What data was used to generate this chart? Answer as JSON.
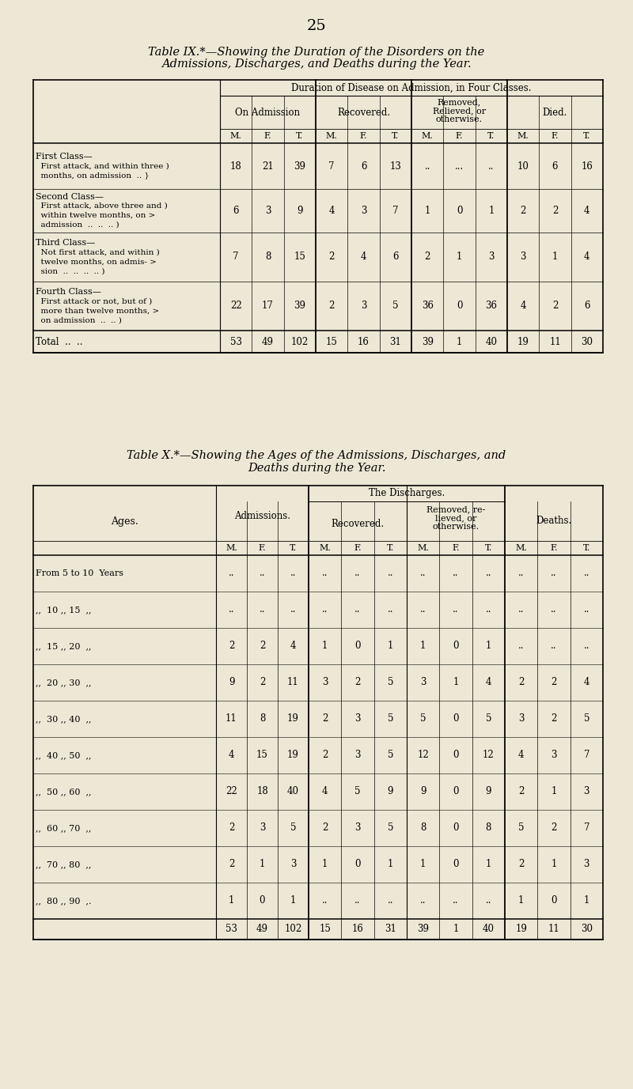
{
  "bg_color": "#ede8d5",
  "page_number": "25",
  "table9": {
    "title_line1": "Table IX.*—Showing the Duration of the Disorders on the",
    "title_line2": "Admissions, Discharges, and Deaths during the Year.",
    "header_span": "Duration of Disease on Admission, in Four Classes.",
    "col_headers": [
      "On Admission",
      "Recovered.",
      "Removed,\nRelieved, or\notherwise.",
      "Died."
    ],
    "data": [
      [
        18,
        21,
        39,
        7,
        6,
        13,
        "..",
        "...",
        "..",
        10,
        6,
        16
      ],
      [
        6,
        3,
        9,
        4,
        3,
        7,
        1,
        0,
        1,
        2,
        2,
        4
      ],
      [
        7,
        8,
        15,
        2,
        4,
        6,
        2,
        1,
        3,
        3,
        1,
        4
      ],
      [
        22,
        17,
        39,
        2,
        3,
        5,
        36,
        0,
        36,
        4,
        2,
        6
      ]
    ],
    "totals": [
      53,
      49,
      102,
      15,
      16,
      31,
      39,
      1,
      40,
      19,
      11,
      30
    ]
  },
  "table10": {
    "title_line1": "Table X.*—Showing the Ages of the Admissions, Discharges, and",
    "title_line2": "Deaths during the Year.",
    "header_span": "The Discharges.",
    "row_labels": [
      "From 5 to 10  Years",
      ",,  10 ,, 15  ,,",
      ",,  15 ,, 20  ,,",
      ",,  20 ,, 30  ,,",
      ",,  30 ,, 40  ,,",
      ",,  40 ,, 50  ,,",
      ",,  50 ,, 60  ,,",
      ",,  60 ,, 70  ,,",
      ",,  70 ,, 80  ,,",
      ",,  80 ,, 90  ,."
    ],
    "data": [
      [
        "..",
        "..",
        "..",
        "..",
        "..",
        "..",
        "..",
        "..",
        "..",
        "..",
        "..",
        ".."
      ],
      [
        "..",
        "..",
        "..",
        "..",
        "..",
        "..",
        "..",
        "..",
        "..",
        "..",
        "..",
        ".."
      ],
      [
        2,
        2,
        4,
        1,
        0,
        1,
        1,
        0,
        1,
        "..",
        "..",
        ".."
      ],
      [
        9,
        2,
        11,
        3,
        2,
        5,
        3,
        1,
        4,
        2,
        2,
        4
      ],
      [
        11,
        8,
        19,
        2,
        3,
        5,
        5,
        0,
        5,
        3,
        2,
        5
      ],
      [
        4,
        15,
        19,
        2,
        3,
        5,
        12,
        0,
        12,
        4,
        3,
        7
      ],
      [
        22,
        18,
        40,
        4,
        5,
        9,
        9,
        0,
        9,
        2,
        1,
        3
      ],
      [
        2,
        3,
        5,
        2,
        3,
        5,
        8,
        0,
        8,
        5,
        2,
        7
      ],
      [
        2,
        1,
        3,
        1,
        0,
        1,
        1,
        0,
        1,
        2,
        1,
        3
      ],
      [
        1,
        0,
        1,
        "..",
        "..",
        "..",
        "..",
        "..",
        "..",
        1,
        0,
        1
      ]
    ],
    "totals": [
      53,
      49,
      102,
      15,
      16,
      31,
      39,
      1,
      40,
      19,
      11,
      30
    ]
  }
}
